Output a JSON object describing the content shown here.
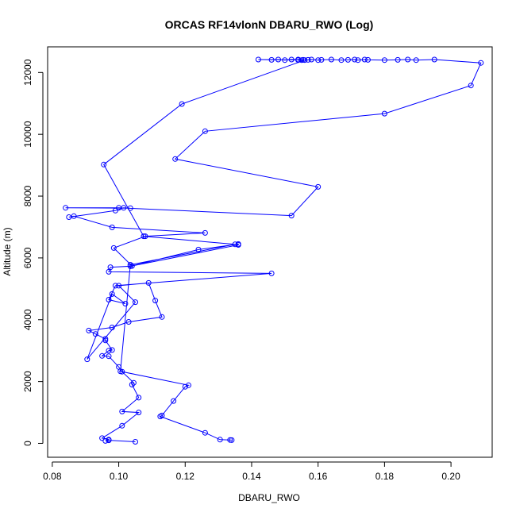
{
  "chart_data": {
    "type": "line",
    "title": "ORCAS RF14vlonN DBARU_RWO (Log)",
    "xlabel": "DBARU_RWO",
    "ylabel": "Altitude (m)",
    "xlim": [
      0.0786,
      0.2124
    ],
    "ylim": [
      -450,
      12830
    ],
    "x_ticks": [
      0.08,
      0.1,
      0.12,
      0.14,
      0.16,
      0.18,
      0.2
    ],
    "x_tick_labels": [
      "0.08",
      "0.10",
      "0.12",
      "0.14",
      "0.16",
      "0.18",
      "0.20"
    ],
    "y_ticks": [
      0,
      2000,
      4000,
      6000,
      8000,
      10000,
      12000
    ],
    "y_tick_labels": [
      "0",
      "2000",
      "4000",
      "6000",
      "8000",
      "10000",
      "12000"
    ],
    "grid": false,
    "legend": "none",
    "series_color": "#0000ff",
    "marker": "open-circle",
    "series": [
      {
        "points": [
          [
            0.105,
            50
          ],
          [
            0.097,
            100
          ],
          [
            0.096,
            80
          ],
          [
            0.097,
            120
          ],
          [
            0.095,
            170
          ],
          [
            0.101,
            570
          ],
          [
            0.106,
            1000
          ],
          [
            0.101,
            1030
          ],
          [
            0.106,
            1480
          ],
          [
            0.104,
            1900
          ],
          [
            0.1045,
            1960
          ],
          [
            0.101,
            2320
          ],
          [
            0.1,
            2470
          ],
          [
            0.097,
            2820
          ],
          [
            0.095,
            2830
          ],
          [
            0.097,
            3000
          ],
          [
            0.098,
            3020
          ],
          [
            0.096,
            3330
          ],
          [
            0.096,
            3380
          ],
          [
            0.093,
            3540
          ],
          [
            0.091,
            3650
          ],
          [
            0.098,
            3750
          ],
          [
            0.103,
            3930
          ],
          [
            0.113,
            4090
          ],
          [
            0.111,
            4620
          ],
          [
            0.109,
            5190
          ],
          [
            0.1,
            5100
          ],
          [
            0.105,
            4570
          ],
          [
            0.0905,
            2720
          ],
          [
            0.098,
            4830
          ],
          [
            0.102,
            4520
          ],
          [
            0.097,
            4650
          ],
          [
            0.099,
            5100
          ],
          [
            0.146,
            5500
          ],
          [
            0.097,
            5550
          ],
          [
            0.0975,
            5700
          ],
          [
            0.1035,
            5730
          ],
          [
            0.124,
            6270
          ],
          [
            0.136,
            6450
          ],
          [
            0.136,
            6420
          ],
          [
            0.104,
            5740
          ],
          [
            0.0985,
            6320
          ],
          [
            0.108,
            6700
          ],
          [
            0.126,
            6810
          ],
          [
            0.098,
            6990
          ],
          [
            0.0865,
            7350
          ],
          [
            0.085,
            7320
          ],
          [
            0.099,
            7530
          ],
          [
            0.1015,
            7620
          ],
          [
            0.1035,
            7610
          ],
          [
            0.084,
            7620
          ],
          [
            0.1,
            7620
          ],
          [
            0.152,
            7370
          ],
          [
            0.16,
            8300
          ],
          [
            0.117,
            9200
          ],
          [
            0.126,
            10100
          ],
          [
            0.18,
            10670
          ],
          [
            0.206,
            11580
          ],
          [
            0.209,
            12310
          ],
          [
            0.195,
            12420
          ],
          [
            0.1895,
            12400
          ],
          [
            0.187,
            12420
          ],
          [
            0.184,
            12410
          ],
          [
            0.18,
            12400
          ],
          [
            0.175,
            12410
          ],
          [
            0.174,
            12420
          ],
          [
            0.172,
            12400
          ],
          [
            0.171,
            12420
          ],
          [
            0.169,
            12410
          ],
          [
            0.167,
            12400
          ],
          [
            0.164,
            12420
          ],
          [
            0.161,
            12410
          ],
          [
            0.16,
            12400
          ],
          [
            0.158,
            12420
          ],
          [
            0.157,
            12410
          ],
          [
            0.155,
            12400
          ],
          [
            0.154,
            12400
          ],
          [
            0.154,
            12420
          ],
          [
            0.1555,
            12410
          ],
          [
            0.152,
            12420
          ],
          [
            0.15,
            12400
          ],
          [
            0.148,
            12420
          ],
          [
            0.146,
            12410
          ],
          [
            0.142,
            12420
          ],
          [
            0.156,
            12400
          ],
          [
            0.119,
            10980
          ],
          [
            0.0955,
            9020
          ],
          [
            0.1075,
            6700
          ],
          [
            0.135,
            6440
          ],
          [
            0.1035,
            5780
          ],
          [
            0.1005,
            2330
          ],
          [
            0.121,
            1880
          ],
          [
            0.12,
            1830
          ],
          [
            0.1165,
            1370
          ],
          [
            0.113,
            900
          ],
          [
            0.1125,
            870
          ],
          [
            0.126,
            340
          ],
          [
            0.1305,
            120
          ],
          [
            0.1335,
            110
          ],
          [
            0.134,
            105
          ]
        ]
      }
    ]
  }
}
